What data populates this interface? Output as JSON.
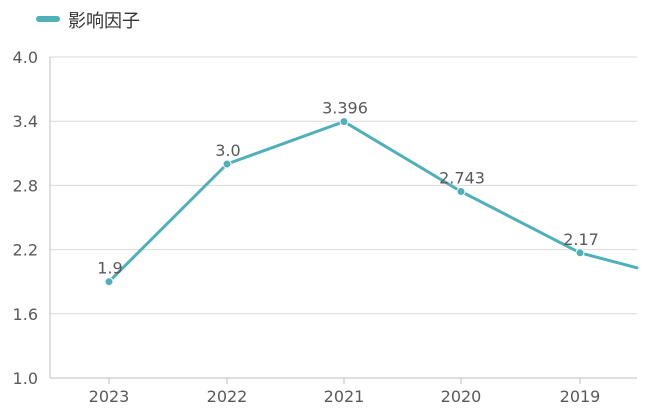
{
  "chart_data": {
    "type": "line",
    "title": "",
    "xlabel": "",
    "ylabel": "",
    "categories": [
      "2023",
      "2022",
      "2021",
      "2020",
      "2019"
    ],
    "series": [
      {
        "name": "影响因子",
        "values": [
          1.9,
          3.0,
          3.396,
          2.743,
          2.17
        ],
        "labels": [
          "1.9",
          "3.0",
          "3.396",
          "2.743",
          "2.17"
        ],
        "color": "#4fb0b9"
      }
    ],
    "ylim": [
      1.0,
      4.0
    ],
    "yticks": [
      "1.0",
      "1.6",
      "2.2",
      "2.8",
      "3.4",
      "4.0"
    ],
    "grid": true,
    "legend": "top-left",
    "trailing_line_toward": 2.03
  },
  "colors": {
    "series": "#4fb0b9",
    "grid": "#d9d9d9",
    "axis": "#bfbfbf",
    "text": "#595959"
  }
}
